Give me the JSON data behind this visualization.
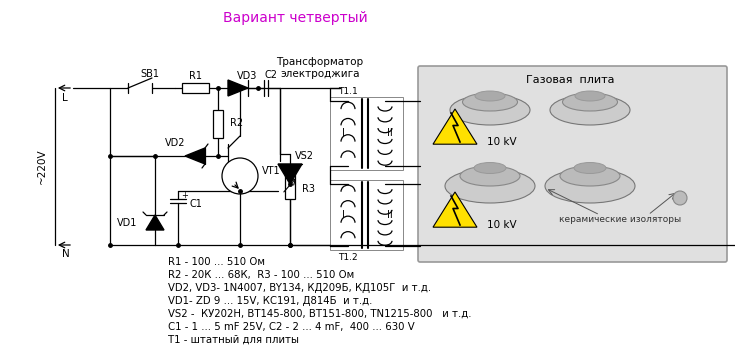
{
  "title": "Вариант четвертый",
  "title_color": "#cc00cc",
  "bg_color": "#ffffff",
  "component_labels": [
    "R1 - 100 ... 510 Ом",
    "R2 - 20К ... 68К,  R3 - 100 ... 510 Ом",
    "VD2, VD3- 1N4007, BY134, КД209Б, КД105Г  и т.д.",
    "VD1- ZD 9 ... 15V, КС191, Д814Б  и т.д.",
    "VS2 -  КУ202Н, ВТ145-800, ВТ151-800, TN1215-800   и т.д.",
    "С1 - 1 ... 5 mF 25V, С2 - 2 ... 4 mF,  400 ... 630 V",
    "Т1 - штатный для плиты"
  ],
  "transformer_label": "Трансформатор\nэлектроджига",
  "gas_stove_label": "Газовая  плита",
  "ceramic_label": "керамические изоляторы",
  "voltage_220": "~220V",
  "voltage_10kv1": "10 kV",
  "voltage_10kv2": "10 kV",
  "label_L": "L",
  "label_N": "N",
  "label_SB1": "SB1",
  "label_R1": "R1",
  "label_R2": "R2",
  "label_R3": "R3",
  "label_VD1": "VD1",
  "label_VD2": "VD2",
  "label_VD3": "VD3",
  "label_VT1": "VT1",
  "label_VS2": "VS2",
  "label_C1": "C1",
  "label_C2": "C2",
  "label_T11": "T1.1",
  "label_T12": "T1.2",
  "label_I": "I",
  "label_II": "II"
}
